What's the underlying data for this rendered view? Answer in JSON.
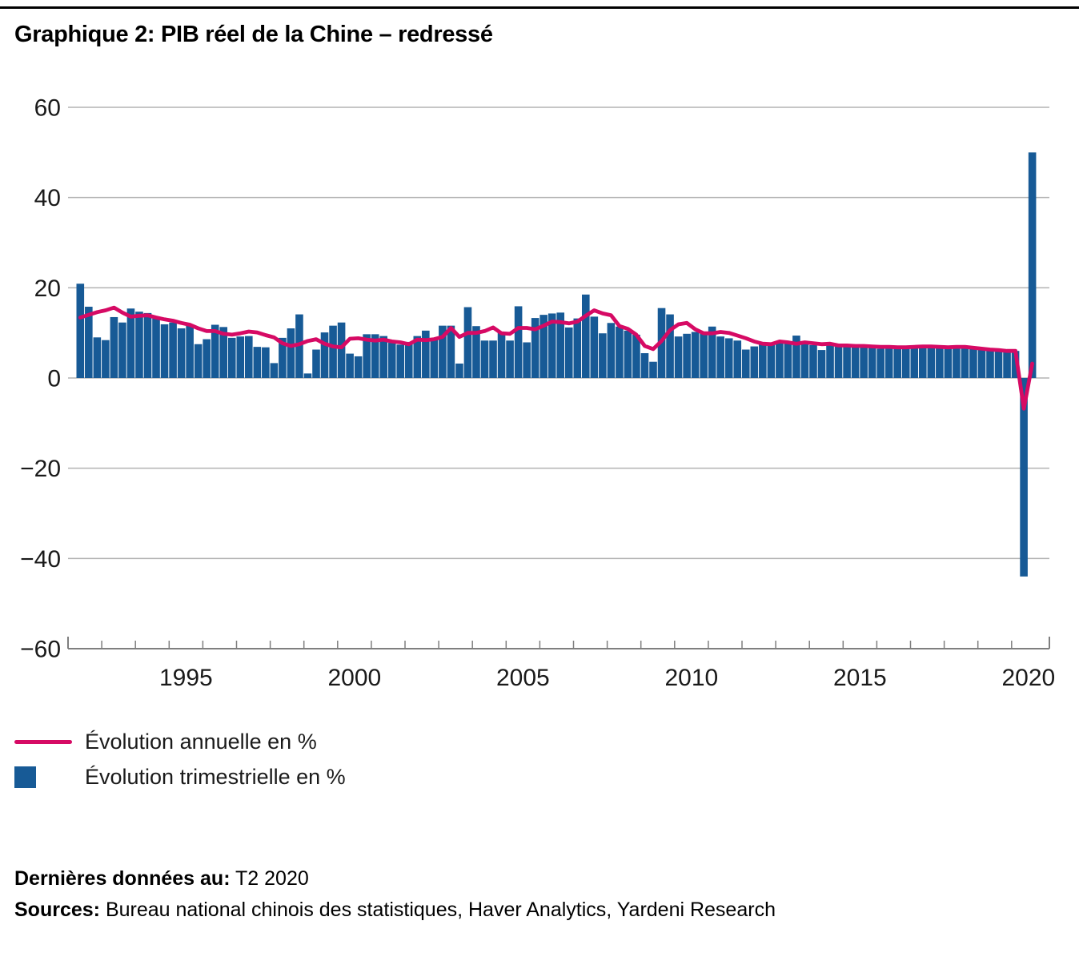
{
  "page": {
    "title": "Graphique 2: PIB réel de la Chine – redressé"
  },
  "chart_data": {
    "type": "bar+line",
    "x_start": "1992Q1",
    "x_end": "2020Q2",
    "frequency": "quarterly",
    "n_points": 114,
    "ylim": [
      -60,
      60
    ],
    "yticks": [
      60,
      40,
      20,
      0,
      -20,
      -40,
      -60
    ],
    "y_tick_labels": [
      "60",
      "40",
      "20",
      "0",
      "−20",
      "−40",
      "−60"
    ],
    "x_label_years": [
      1995,
      2000,
      2005,
      2010,
      2015,
      2020
    ],
    "x_tick_labels": [
      "1995",
      "2000",
      "2005",
      "2010",
      "2015",
      "2020"
    ],
    "x_year_ticks_start": 1992,
    "x_year_ticks_end": 2020,
    "grid": true,
    "legend_position": "below-left",
    "series": [
      {
        "name": "Évolution annuelle en %",
        "type": "line",
        "color": "#d60a64",
        "values": [
          13.4,
          14.0,
          14.6,
          15.0,
          15.6,
          14.5,
          13.6,
          13.8,
          13.9,
          13.4,
          13.0,
          12.7,
          12.2,
          11.8,
          11.0,
          10.4,
          10.4,
          9.8,
          9.6,
          9.9,
          10.3,
          10.1,
          9.5,
          9.0,
          7.7,
          7.1,
          7.5,
          8.2,
          8.6,
          7.6,
          7.0,
          6.8,
          8.7,
          8.8,
          8.5,
          8.3,
          8.5,
          8.1,
          7.9,
          7.5,
          8.5,
          8.4,
          8.6,
          9.1,
          11.1,
          9.1,
          10.0,
          10.0,
          10.4,
          11.2,
          9.9,
          9.8,
          11.1,
          11.1,
          10.8,
          11.6,
          12.5,
          12.4,
          12.1,
          12.5,
          13.8,
          15.0,
          14.3,
          13.9,
          11.5,
          10.9,
          9.6,
          7.1,
          6.4,
          8.2,
          10.6,
          11.9,
          12.2,
          10.8,
          9.9,
          9.9,
          10.2,
          10.0,
          9.4,
          8.8,
          8.1,
          7.6,
          7.5,
          8.1,
          7.9,
          7.6,
          7.9,
          7.7,
          7.5,
          7.6,
          7.2,
          7.2,
          7.1,
          7.1,
          7.0,
          6.9,
          6.9,
          6.8,
          6.8,
          6.9,
          7.0,
          7.0,
          6.9,
          6.8,
          6.9,
          6.9,
          6.7,
          6.5,
          6.3,
          6.2,
          6.0,
          6.0,
          -6.8,
          3.2
        ]
      },
      {
        "name": "Évolution trimestrielle en %",
        "type": "bar",
        "color": "#175a96",
        "values": [
          20.9,
          15.8,
          9.0,
          8.4,
          13.5,
          12.3,
          15.4,
          14.7,
          14.4,
          13.2,
          11.9,
          12.3,
          11.0,
          11.9,
          7.5,
          8.6,
          11.8,
          11.3,
          8.9,
          9.2,
          9.3,
          6.9,
          6.8,
          3.3,
          8.9,
          11.0,
          14.1,
          1.0,
          6.3,
          10.1,
          11.6,
          12.3,
          5.4,
          4.8,
          9.7,
          9.7,
          9.3,
          7.8,
          7.4,
          8.0,
          9.3,
          10.5,
          8.8,
          11.6,
          11.6,
          3.2,
          15.7,
          11.5,
          8.3,
          8.3,
          10.2,
          8.3,
          15.9,
          7.9,
          13.3,
          14.0,
          14.3,
          14.5,
          11.2,
          13.2,
          18.5,
          13.6,
          9.9,
          12.2,
          11.4,
          10.5,
          9.6,
          5.5,
          3.6,
          15.5,
          14.1,
          9.2,
          9.8,
          10.2,
          10.3,
          11.4,
          9.2,
          8.8,
          8.3,
          6.3,
          7.0,
          7.8,
          7.5,
          7.8,
          7.8,
          9.4,
          8.0,
          7.3,
          6.2,
          7.5,
          7.0,
          7.0,
          7.0,
          7.3,
          6.8,
          6.5,
          7.2,
          7.1,
          6.8,
          6.7,
          7.0,
          6.9,
          6.9,
          6.6,
          6.9,
          6.7,
          6.4,
          6.3,
          6.2,
          6.0,
          6.1,
          6.0,
          -44.0,
          50.0
        ]
      }
    ]
  },
  "footer": {
    "last_data_label": "Dernières données au:",
    "last_data_value": "T2 2020",
    "sources_label": "Sources:",
    "sources_value": "Bureau national chinois des statistiques, Haver Analytics, Yardeni Research"
  }
}
